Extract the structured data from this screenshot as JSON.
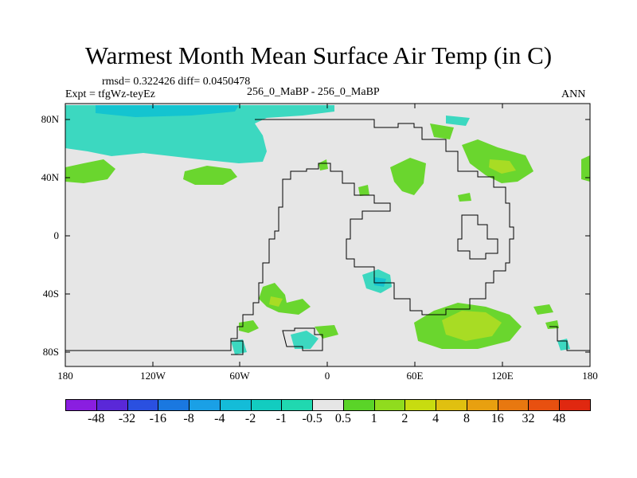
{
  "title": "Warmest Month Mean Surface Air Temp (in C)",
  "stats": "rmsd= 0.322426 diff= 0.0450478",
  "experiment": "Expt = tfgWz-teyEz",
  "comparison": "256_0_MaBP - 256_0_MaBP",
  "season": "ANN",
  "y_ticks": [
    "80N",
    "40N",
    "0",
    "40S",
    "80S"
  ],
  "x_ticks": [
    "180",
    "120W",
    "60W",
    "0",
    "60E",
    "120E",
    "180"
  ],
  "colorbar": {
    "labels": [
      "-48",
      "-32",
      "-16",
      "-8",
      "-4",
      "-2",
      "-1",
      "-0.5",
      "0.5",
      "1",
      "2",
      "4",
      "8",
      "16",
      "32",
      "48"
    ],
    "colors": [
      "#8a1ee0",
      "#5a28d8",
      "#2a50e0",
      "#1a78e0",
      "#1aa0e6",
      "#14bcd8",
      "#12ccc0",
      "#20d8b0",
      "#e6e6e6",
      "#5ad428",
      "#90dc1e",
      "#c8dc10",
      "#e0c010",
      "#e8a010",
      "#e87810",
      "#e85010",
      "#e02810"
    ]
  },
  "map_colors": {
    "background": "#e6e6e6",
    "positive_light": "#6ad62e",
    "positive_mid": "#a8dc24",
    "negative_light": "#3cd8c0",
    "negative_mid": "#14c4d0"
  }
}
